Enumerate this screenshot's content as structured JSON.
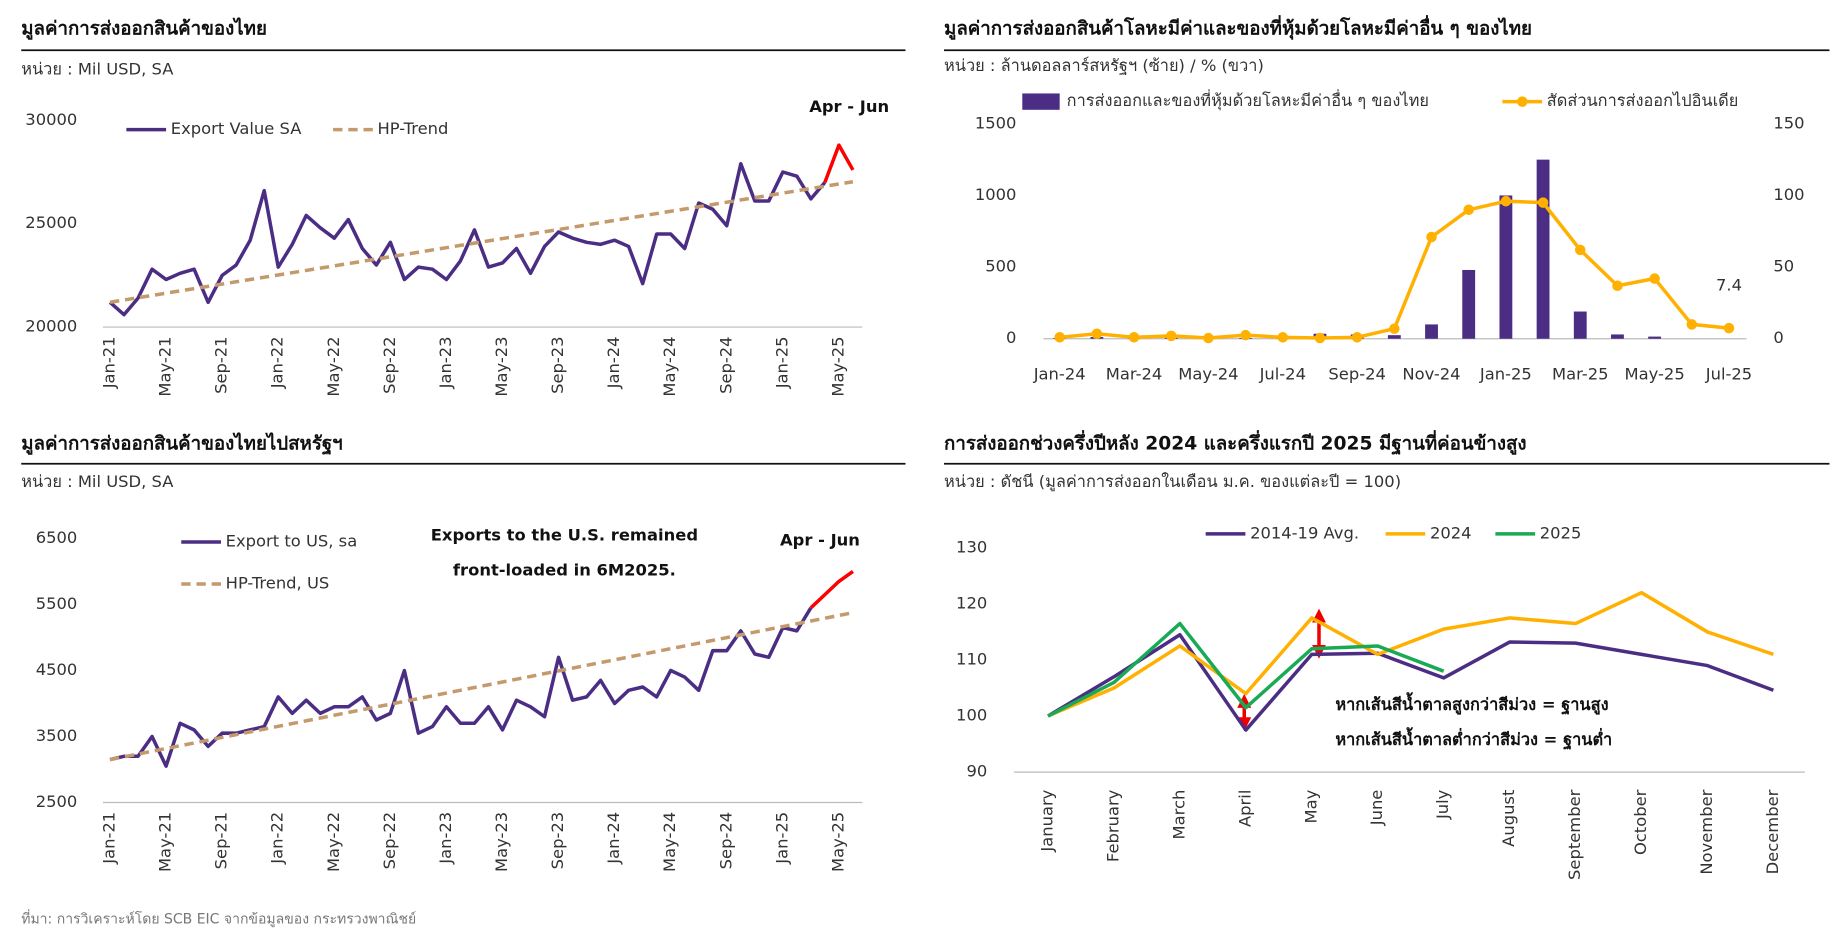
{
  "source": "ที่มา: การวิเคราะห์โดย SCB EIC จากข้อมูลของ กระทรวงพาณิชย์",
  "chart_data": [
    {
      "type": "line",
      "title": "มูลค่าการส่งออกสินค้าของไทย",
      "subtitle": "หน่วย : Mil USD, SA",
      "categories": [
        "Jan-21",
        null,
        null,
        null,
        "May-21",
        null,
        null,
        null,
        "Sep-21",
        null,
        null,
        null,
        "Jan-22",
        null,
        null,
        null,
        "May-22",
        null,
        null,
        null,
        "Sep-22",
        null,
        null,
        null,
        "Jan-23",
        null,
        null,
        null,
        "May-23",
        null,
        null,
        null,
        "Sep-23",
        null,
        null,
        null,
        "Jan-24",
        null,
        null,
        null,
        "May-24",
        null,
        null,
        null,
        "Sep-24",
        null,
        null,
        null,
        "Jan-25",
        null,
        null,
        null,
        "May-25",
        null
      ],
      "series": [
        {
          "name": "Export Value SA",
          "color": "#4b2e83",
          "values": [
            21200,
            20600,
            21400,
            22800,
            22300,
            22600,
            22800,
            21200,
            22500,
            23000,
            24200,
            26600,
            22900,
            24000,
            25400,
            24800,
            24300,
            25200,
            23800,
            23000,
            24100,
            22300,
            22900,
            22800,
            22300,
            23200,
            24700,
            22900,
            23100,
            23800,
            22600,
            23900,
            24600,
            24300,
            24100,
            24000,
            24200,
            23900,
            22100,
            24500,
            24500,
            23800,
            26000,
            25700,
            24900,
            27900,
            26100,
            26100,
            27500,
            27300,
            26200,
            27000,
            28800,
            27600
          ]
        },
        {
          "name": "HP-Trend",
          "color": "#c49a6c",
          "dash": true,
          "values": [
            21200,
            21310,
            21420,
            21530,
            21640,
            21750,
            21860,
            21970,
            22080,
            22190,
            22300,
            22410,
            22520,
            22630,
            22740,
            22850,
            22960,
            23070,
            23180,
            23290,
            23400,
            23510,
            23620,
            23730,
            23840,
            23950,
            24060,
            24170,
            24280,
            24390,
            24500,
            24610,
            24720,
            24830,
            24940,
            25050,
            25160,
            25270,
            25380,
            25490,
            25600,
            25710,
            25820,
            25930,
            26040,
            26150,
            26260,
            26370,
            26480,
            26590,
            26700,
            26810,
            26920,
            27030
          ]
        }
      ],
      "highlight": {
        "label": "Apr - Jun",
        "color": "#ff0000",
        "from": 51
      },
      "ylim": [
        20000,
        30000
      ],
      "yticks": [
        20000,
        25000,
        30000
      ],
      "grid": false
    },
    {
      "type": "bar",
      "title": "มูลค่าการส่งออกสินค้าโลหะมีค่าและของที่หุ้มด้วยโลหะมีค่าอื่น ๆ ของไทย",
      "subtitle": "หน่วย : ล้านดอลลาร์สหรัฐฯ (ซ้าย) / % (ขวา)",
      "categories": [
        "Jan-24",
        null,
        "Mar-24",
        null,
        "May-24",
        null,
        "Jul-24",
        null,
        "Sep-24",
        null,
        "Nov-24",
        null,
        "Jan-25",
        null,
        "Mar-25",
        null,
        "May-25",
        null,
        "Jul-25"
      ],
      "series": [
        {
          "name": "การส่งออกและของที่หุ้มด้วยโลหะมีค่าอื่น ๆ ของไทย",
          "type": "bar",
          "color": "#4b2e83",
          "values": [
            5,
            12,
            5,
            8,
            8,
            5,
            5,
            35,
            30,
            25,
            100,
            480,
            1000,
            1250,
            190,
            30,
            15,
            0,
            0
          ]
        },
        {
          "name": "สัดส่วนการส่งออกไปอินเดีย",
          "type": "line",
          "axis": "y2",
          "marker": "circle",
          "color": "#ffb000",
          "values": [
            1,
            3.5,
            1,
            2,
            0.5,
            2.5,
            1,
            0.5,
            1,
            7,
            71,
            90,
            96,
            95,
            62,
            37,
            42,
            10,
            7.4
          ],
          "value_labels": {
            "18": "7.4"
          }
        }
      ],
      "ylim": [
        0,
        1500
      ],
      "yticks": [
        0,
        500,
        1000,
        1500
      ],
      "y2lim": [
        0,
        150
      ],
      "y2ticks": [
        0,
        50,
        100,
        150
      ],
      "grid": false
    },
    {
      "type": "line",
      "title": "มูลค่าการส่งออกสินค้าของไทยไปสหรัฐฯ",
      "subtitle": "หน่วย : Mil USD, SA",
      "categories": [
        "Jan-21",
        null,
        null,
        null,
        "May-21",
        null,
        null,
        null,
        "Sep-21",
        null,
        null,
        null,
        "Jan-22",
        null,
        null,
        null,
        "May-22",
        null,
        null,
        null,
        "Sep-22",
        null,
        null,
        null,
        "Jan-23",
        null,
        null,
        null,
        "May-23",
        null,
        null,
        null,
        "Sep-23",
        null,
        null,
        null,
        "Jan-24",
        null,
        null,
        null,
        "May-24",
        null,
        null,
        null,
        "Sep-24",
        null,
        null,
        null,
        "Jan-25",
        null,
        null,
        null,
        "May-25",
        null
      ],
      "series": [
        {
          "name": "Export to US, sa",
          "color": "#4b2e83",
          "values": [
            3150,
            3200,
            3200,
            3500,
            3050,
            3700,
            3600,
            3350,
            3550,
            3550,
            3600,
            3650,
            4100,
            3850,
            4050,
            3850,
            3950,
            3950,
            4100,
            3750,
            3850,
            4500,
            3550,
            3650,
            3950,
            3700,
            3700,
            3950,
            3600,
            4050,
            3950,
            3800,
            4700,
            4050,
            4100,
            4350,
            4000,
            4200,
            4250,
            4100,
            4500,
            4400,
            4200,
            4800,
            4800,
            5100,
            4750,
            4700,
            5150,
            5100,
            5450,
            5650,
            5850,
            6000
          ]
        },
        {
          "name": "HP-Trend, US",
          "color": "#c49a6c",
          "dash": true,
          "values": [
            3150,
            3192,
            3234,
            3276,
            3318,
            3360,
            3402,
            3444,
            3486,
            3528,
            3570,
            3612,
            3654,
            3696,
            3738,
            3780,
            3822,
            3864,
            3906,
            3948,
            3990,
            4032,
            4074,
            4116,
            4158,
            4200,
            4242,
            4284,
            4326,
            4368,
            4410,
            4452,
            4494,
            4536,
            4578,
            4620,
            4662,
            4704,
            4746,
            4788,
            4830,
            4872,
            4914,
            4956,
            4998,
            5040,
            5082,
            5124,
            5166,
            5208,
            5250,
            5292,
            5334,
            5376
          ]
        }
      ],
      "highlight": {
        "label": "Apr - Jun",
        "color": "#ff0000",
        "from": 50
      },
      "annotations": [
        "Exports to the U.S. remained",
        "front-loaded in 6M2025."
      ],
      "ylim": [
        2500,
        6500
      ],
      "yticks": [
        2500,
        3500,
        4500,
        5500,
        6500
      ],
      "grid": false
    },
    {
      "type": "line",
      "title": "การส่งออกช่วงครึ่งปีหลัง 2024 และครึ่งแรกปี 2025 มีฐานที่ค่อนข้างสูง",
      "subtitle": "หน่วย : ดัชนี (มูลค่าการส่งออกในเดือน ม.ค. ของแต่ละปี = 100)",
      "categories": [
        "January",
        "February",
        "March",
        "April",
        "May",
        "June",
        "July",
        "August",
        "September",
        "October",
        "November",
        "December"
      ],
      "series": [
        {
          "name": "2014-19 Avg.",
          "color": "#4b2e83",
          "values": [
            100,
            107,
            114.5,
            97.5,
            111,
            111.2,
            106.8,
            113.2,
            113,
            111,
            109,
            104.6
          ]
        },
        {
          "name": "2024",
          "color": "#ffb000",
          "values": [
            100,
            105,
            112.5,
            104,
            117.5,
            111,
            115.5,
            117.5,
            116.5,
            122,
            115,
            111
          ]
        },
        {
          "name": "2025",
          "color": "#1aaa55",
          "values": [
            100,
            106,
            116.5,
            101.5,
            112,
            112.5,
            108,
            null,
            null,
            null,
            null,
            null
          ]
        }
      ],
      "annotations": [
        "หากเส้นสีน้ำตาลสูงกว่าสีม่วง = ฐานสูง",
        "หากเส้นสีน้ำตาลต่ำกว่าสีม่วง = ฐานต่ำ"
      ],
      "ylim": [
        90,
        130
      ],
      "yticks": [
        90,
        100,
        110,
        120,
        130
      ],
      "grid": false
    }
  ]
}
